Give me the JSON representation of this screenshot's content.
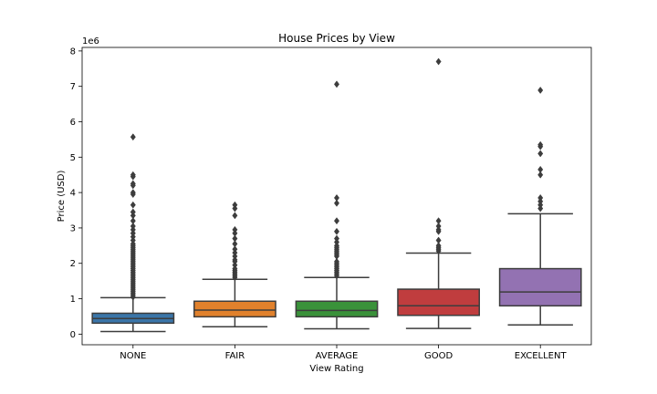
{
  "chart_data": {
    "type": "box",
    "title": "House Prices by View",
    "xlabel": "View Rating",
    "ylabel": "Price (USD)",
    "y_offset_label": "1e6",
    "ylim": [
      -300000,
      8100000
    ],
    "yticks": [
      0,
      1000000,
      2000000,
      3000000,
      4000000,
      5000000,
      6000000,
      7000000,
      8000000
    ],
    "ytick_labels": [
      "0",
      "1",
      "2",
      "3",
      "4",
      "5",
      "6",
      "7",
      "8"
    ],
    "grid": false,
    "legend": "none",
    "categories": [
      "NONE",
      "FAIR",
      "AVERAGE",
      "GOOD",
      "EXCELLENT"
    ],
    "colors": [
      "#3a75a8",
      "#e1812c",
      "#3a923a",
      "#c03d3e",
      "#9372b2"
    ],
    "boxes": [
      {
        "category": "NONE",
        "whisker_low": 75000,
        "q1": 310000,
        "median": 440000,
        "q3": 590000,
        "whisker_high": 1030000,
        "outliers": [
          1050000,
          1100000,
          1150000,
          1200000,
          1250000,
          1300000,
          1350000,
          1400000,
          1450000,
          1500000,
          1550000,
          1600000,
          1650000,
          1700000,
          1750000,
          1800000,
          1850000,
          1900000,
          1950000,
          2000000,
          2050000,
          2100000,
          2150000,
          2200000,
          2250000,
          2300000,
          2350000,
          2400000,
          2450000,
          2500000,
          2550000,
          2650000,
          2750000,
          2850000,
          2950000,
          3050000,
          3200000,
          3350000,
          3450000,
          3650000,
          3950000,
          4000000,
          4200000,
          4250000,
          4450000,
          4500000,
          5570000
        ]
      },
      {
        "category": "FAIR",
        "whisker_low": 210000,
        "q1": 490000,
        "median": 680000,
        "q3": 930000,
        "whisker_high": 1550000,
        "outliers": [
          1600000,
          1650000,
          1700000,
          1750000,
          1800000,
          1850000,
          1950000,
          2050000,
          2100000,
          2200000,
          2300000,
          2400000,
          2550000,
          2700000,
          2850000,
          2950000,
          3350000,
          3550000,
          3650000
        ]
      },
      {
        "category": "AVERAGE",
        "whisker_low": 150000,
        "q1": 490000,
        "median": 670000,
        "q3": 930000,
        "whisker_high": 1600000,
        "outliers": [
          1650000,
          1700000,
          1750000,
          1800000,
          1850000,
          1900000,
          1950000,
          2000000,
          2050000,
          2200000,
          2250000,
          2300000,
          2350000,
          2400000,
          2450000,
          2500000,
          2600000,
          2700000,
          2900000,
          3200000,
          3700000,
          3850000,
          7060000
        ]
      },
      {
        "category": "GOOD",
        "whisker_low": 160000,
        "q1": 530000,
        "median": 800000,
        "q3": 1270000,
        "whisker_high": 2290000,
        "outliers": [
          2350000,
          2400000,
          2450000,
          2500000,
          2650000,
          2900000,
          2950000,
          3050000,
          3200000,
          7700000
        ]
      },
      {
        "category": "EXCELLENT",
        "whisker_low": 260000,
        "q1": 800000,
        "median": 1190000,
        "q3": 1850000,
        "whisker_high": 3400000,
        "outliers": [
          3550000,
          3650000,
          3750000,
          3850000,
          4500000,
          4650000,
          5100000,
          5300000,
          5350000,
          6890000
        ]
      }
    ]
  }
}
